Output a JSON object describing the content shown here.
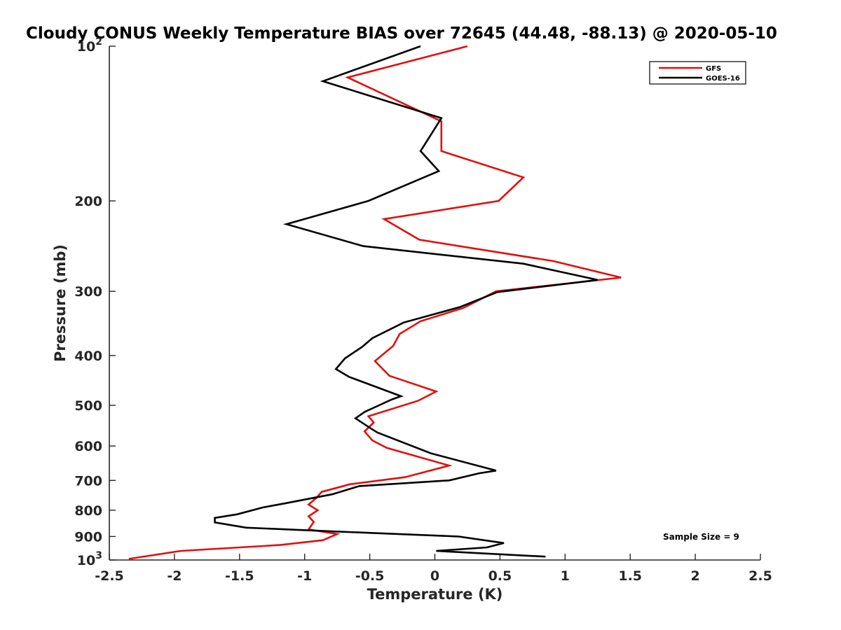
{
  "chart_data": {
    "type": "line",
    "title": "Cloudy CONUS Weekly Temperature BIAS over 72645 (44.48, -88.13) @ 2020-05-10",
    "xlabel": "Temperature (K)",
    "ylabel": "Pressure (mb)",
    "xlim": [
      -2.5,
      2.5
    ],
    "ylim": [
      100,
      1000
    ],
    "y_scale": "log",
    "y_reversed": true,
    "x_ticks": [
      "-2.5",
      "-2",
      "-1.5",
      "-1",
      "-0.5",
      "0",
      "0.5",
      "1",
      "1.5",
      "2",
      "2.5"
    ],
    "x_tick_values": [
      -2.5,
      -2,
      -1.5,
      -1,
      -0.5,
      0,
      0.5,
      1,
      1.5,
      2,
      2.5
    ],
    "y_ticks": [
      {
        "value": 100,
        "base": "10",
        "exp": "2"
      },
      {
        "value": 200,
        "base": "200",
        "exp": ""
      },
      {
        "value": 300,
        "base": "300",
        "exp": ""
      },
      {
        "value": 400,
        "base": "400",
        "exp": ""
      },
      {
        "value": 500,
        "base": "500",
        "exp": ""
      },
      {
        "value": 600,
        "base": "600",
        "exp": ""
      },
      {
        "value": 700,
        "base": "700",
        "exp": ""
      },
      {
        "value": 800,
        "base": "800",
        "exp": ""
      },
      {
        "value": 900,
        "base": "900",
        "exp": ""
      },
      {
        "value": 1000,
        "base": "10",
        "exp": "3"
      }
    ],
    "grid": false,
    "legend_position": "top-right",
    "annotation": "Sample Size = 9",
    "series": [
      {
        "name": "GFS",
        "color": "#e01010",
        "points": [
          [
            0.25,
            100
          ],
          [
            -0.67,
            115
          ],
          [
            0.05,
            140
          ],
          [
            0.05,
            160
          ],
          [
            0.68,
            180
          ],
          [
            0.49,
            200
          ],
          [
            -0.39,
            217
          ],
          [
            -0.12,
            238
          ],
          [
            0.91,
            262
          ],
          [
            1.43,
            282
          ],
          [
            0.47,
            300
          ],
          [
            0.22,
            323
          ],
          [
            -0.11,
            343
          ],
          [
            -0.27,
            363
          ],
          [
            -0.32,
            383
          ],
          [
            -0.46,
            410
          ],
          [
            -0.35,
            438
          ],
          [
            0.01,
            470
          ],
          [
            -0.13,
            490
          ],
          [
            -0.51,
            525
          ],
          [
            -0.47,
            540
          ],
          [
            -0.54,
            562
          ],
          [
            -0.48,
            585
          ],
          [
            -0.37,
            605
          ],
          [
            0.11,
            655
          ],
          [
            -0.23,
            690
          ],
          [
            -0.65,
            712
          ],
          [
            -0.87,
            737
          ],
          [
            -0.91,
            757
          ],
          [
            -0.97,
            780
          ],
          [
            -0.9,
            800
          ],
          [
            -0.97,
            822
          ],
          [
            -0.93,
            843
          ],
          [
            -0.97,
            872
          ],
          [
            -0.75,
            890
          ],
          [
            -0.86,
            915
          ],
          [
            -1.19,
            935
          ],
          [
            -1.95,
            960
          ],
          [
            -2.35,
            995
          ]
        ]
      },
      {
        "name": "GOES-16",
        "color": "#000000",
        "points": [
          [
            -0.11,
            100
          ],
          [
            -0.86,
            117
          ],
          [
            0.05,
            138
          ],
          [
            -0.11,
            160
          ],
          [
            0.03,
            175
          ],
          [
            -0.51,
            200
          ],
          [
            -1.14,
            222
          ],
          [
            -0.55,
            245
          ],
          [
            0.68,
            265
          ],
          [
            1.25,
            285
          ],
          [
            0.48,
            301
          ],
          [
            0.19,
            322
          ],
          [
            -0.24,
            345
          ],
          [
            -0.48,
            370
          ],
          [
            -0.56,
            385
          ],
          [
            -0.69,
            405
          ],
          [
            -0.76,
            425
          ],
          [
            -0.66,
            440
          ],
          [
            -0.26,
            480
          ],
          [
            -0.33,
            487
          ],
          [
            -0.54,
            515
          ],
          [
            -0.61,
            530
          ],
          [
            -0.49,
            555
          ],
          [
            -0.44,
            565
          ],
          [
            -0.03,
            620
          ],
          [
            0.47,
            670
          ],
          [
            0.34,
            678
          ],
          [
            0.11,
            700
          ],
          [
            -0.58,
            718
          ],
          [
            -0.79,
            745
          ],
          [
            -1.14,
            775
          ],
          [
            -1.32,
            790
          ],
          [
            -1.52,
            815
          ],
          [
            -1.69,
            828
          ],
          [
            -1.69,
            845
          ],
          [
            -1.45,
            865
          ],
          [
            -0.76,
            880
          ],
          [
            0.18,
            900
          ],
          [
            0.53,
            927
          ],
          [
            0.4,
            945
          ],
          [
            0.01,
            960
          ],
          [
            0.85,
            985
          ]
        ]
      }
    ]
  }
}
